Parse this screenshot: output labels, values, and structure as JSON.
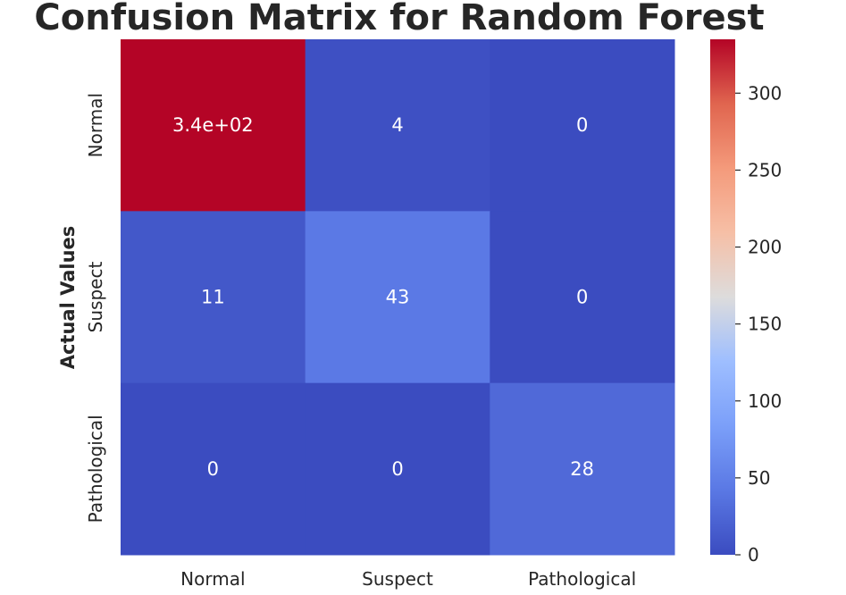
{
  "chart_data": {
    "type": "heatmap",
    "title": "Confusion Matrix for Random Forest",
    "ylabel": "Actual Values",
    "xlabel": "",
    "x_categories": [
      "Normal",
      "Suspect",
      "Pathological"
    ],
    "y_categories": [
      "Normal",
      "Suspect",
      "Pathological"
    ],
    "values": [
      [
        335,
        4,
        0
      ],
      [
        11,
        43,
        0
      ],
      [
        0,
        0,
        28
      ]
    ],
    "annotations": [
      [
        "3.4e+02",
        "4",
        "0"
      ],
      [
        "11",
        "43",
        "0"
      ],
      [
        "0",
        "0",
        "28"
      ]
    ],
    "colormap": "coolwarm",
    "colorbar": {
      "range": [
        0,
        335
      ],
      "ticks": [
        0,
        50,
        100,
        150,
        200,
        250,
        300
      ],
      "tick_labels": [
        "0",
        "50",
        "100",
        "150",
        "200",
        "250",
        "300"
      ]
    }
  }
}
